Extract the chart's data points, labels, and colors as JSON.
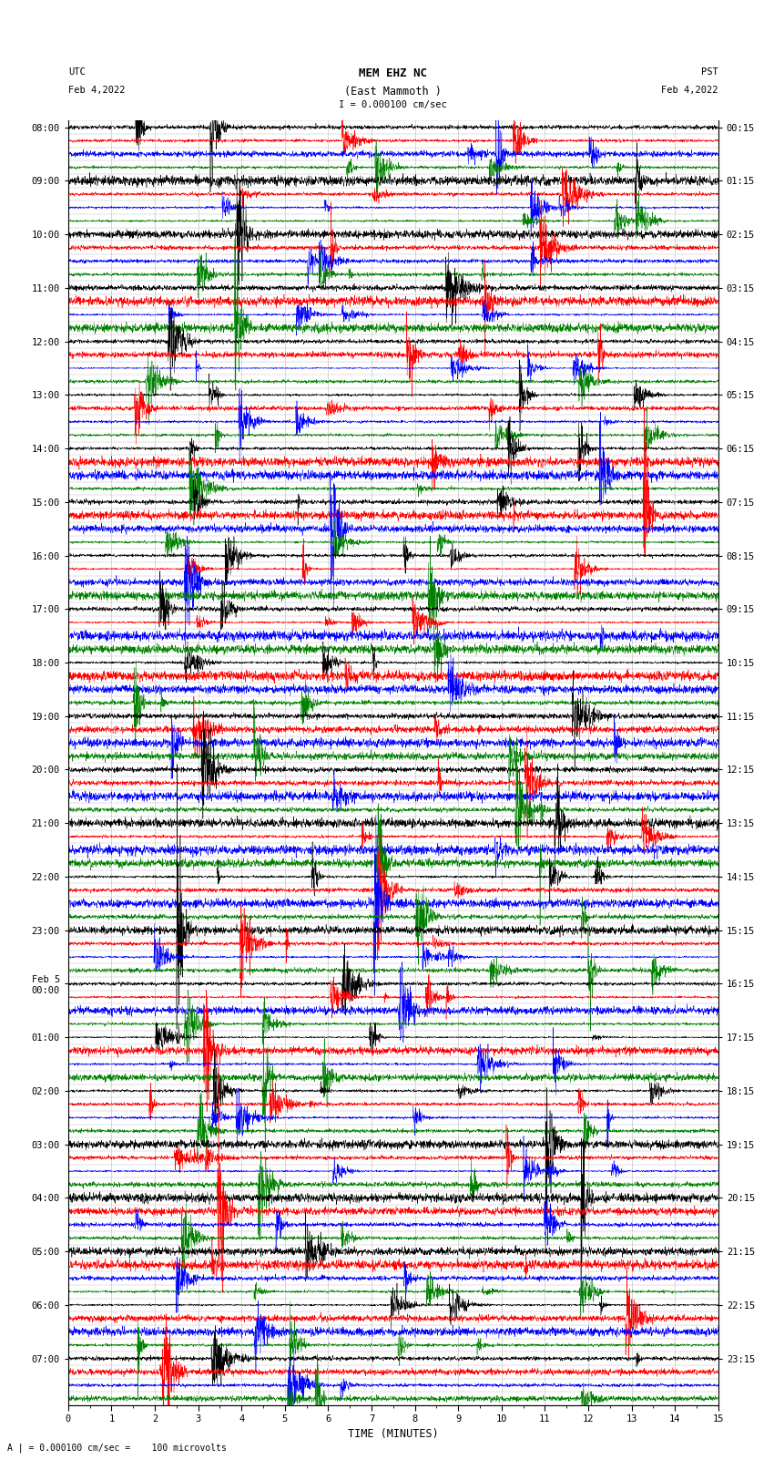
{
  "title_line1": "MEM EHZ NC",
  "title_line2": "(East Mammoth )",
  "title_line3": "I = 0.000100 cm/sec",
  "left_header_line1": "UTC",
  "left_header_line2": "Feb 4,2022",
  "right_header_line1": "PST",
  "right_header_line2": "Feb 4,2022",
  "xlabel": "TIME (MINUTES)",
  "bottom_label": "A | = 0.000100 cm/sec =    100 microvolts",
  "utc_hour_labels": [
    "08:00",
    "09:00",
    "10:00",
    "11:00",
    "12:00",
    "13:00",
    "14:00",
    "15:00",
    "16:00",
    "17:00",
    "18:00",
    "19:00",
    "20:00",
    "21:00",
    "22:00",
    "23:00",
    "Feb 5\n00:00",
    "01:00",
    "02:00",
    "03:00",
    "04:00",
    "05:00",
    "06:00",
    "07:00"
  ],
  "pst_hour_labels": [
    "00:15",
    "01:15",
    "02:15",
    "03:15",
    "04:15",
    "05:15",
    "06:15",
    "07:15",
    "08:15",
    "09:15",
    "10:15",
    "11:15",
    "12:15",
    "13:15",
    "14:15",
    "15:15",
    "16:15",
    "17:15",
    "18:15",
    "19:15",
    "20:15",
    "21:15",
    "22:15",
    "23:15"
  ],
  "colors_cycle": [
    "black",
    "red",
    "blue",
    "green"
  ],
  "num_traces": 96,
  "xmin": 0,
  "xmax": 15,
  "background_color": "white",
  "grid_color": "#bbbbbb",
  "fig_width": 8.5,
  "fig_height": 16.13,
  "dpi": 100,
  "seed": 12345
}
